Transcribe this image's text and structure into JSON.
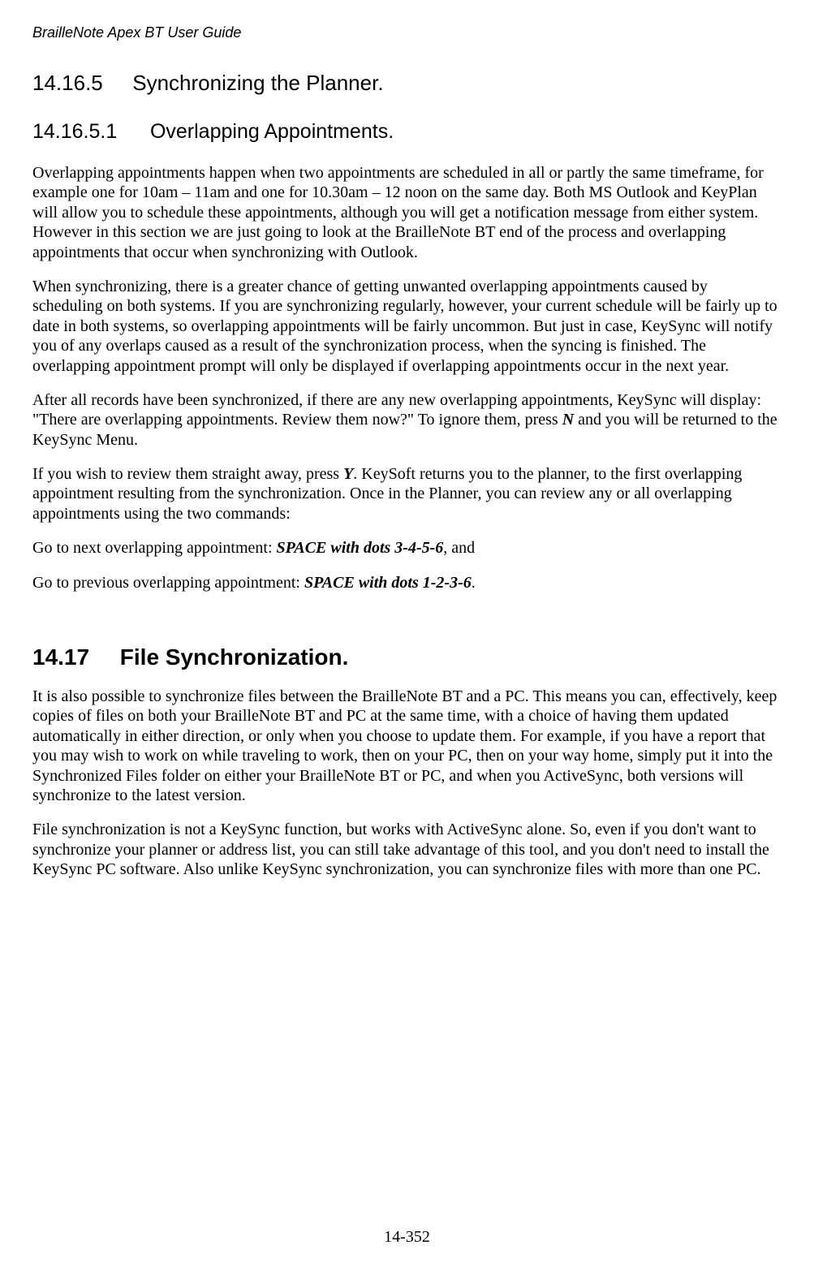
{
  "styles": {
    "font_body": "Times New Roman",
    "font_headings": "Arial",
    "body_fontsize_pt": 15,
    "h2_fontsize_pt": 21,
    "h3_fontsize_pt": 20,
    "h4_fontsize_pt": 19,
    "text_color": "#000000",
    "background_color": "#ffffff",
    "header_italic": true
  },
  "header": {
    "title": "BrailleNote Apex BT User Guide"
  },
  "section_14_16_5": {
    "number": "14.16.5",
    "title": "Synchronizing the Planner."
  },
  "section_14_16_5_1": {
    "number": "14.16.5.1",
    "title": "Overlapping Appointments.",
    "para1": "Overlapping appointments happen when two appointments are scheduled in all or partly the same timeframe, for example one for 10am – 11am and one for 10.30am – 12 noon on the same day. Both MS Outlook and KeyPlan will allow you to schedule these appointments, although you will get a notification message from either system. However in this section we are just going to look at the BrailleNote BT end of the process and overlapping appointments that occur when synchronizing with Outlook.",
    "para2": "When synchronizing, there is a greater chance of getting unwanted overlapping appointments caused by scheduling on both systems. If you are synchronizing regularly, however, your current schedule will be fairly up to date in both systems, so overlapping appointments will be fairly uncommon. But just in case, KeySync will notify you of any overlaps caused as a result of the synchronization process, when the syncing is finished. The overlapping appointment prompt will only be displayed if overlapping appointments occur in the next year.",
    "para3_a": "After all records have been synchronized, if there are any new overlapping appointments, KeySync will display: \"There are overlapping appointments. Review them now?\" To ignore them, press ",
    "para3_key": "N",
    "para3_b": " and you will be returned to the KeySync Menu.",
    "para4_a": "If you wish to review them straight away, press ",
    "para4_key": "Y",
    "para4_b": ". KeySoft returns you to the planner, to the first overlapping appointment resulting from the synchronization. Once in the Planner, you can review any or all overlapping appointments using the two commands:",
    "para5_a": "Go to next overlapping appointment: ",
    "para5_cmd": "SPACE with dots 3-4-5-6",
    "para5_b": ", and",
    "para6_a": "Go to previous overlapping appointment: ",
    "para6_cmd": "SPACE with dots 1-2-3-6",
    "para6_b": "."
  },
  "section_14_17": {
    "number": "14.17",
    "title": "File Synchronization.",
    "para1": "It is also possible to synchronize files between the BrailleNote BT and a PC. This means you can, effectively, keep copies of files on both your BrailleNote BT and PC at the same time, with a choice of having them updated automatically in either direction, or only when you choose to update them. For example, if you have a report that you may wish to work on while traveling to work, then on your PC, then on your way home, simply put it into the Synchronized Files folder on either your BrailleNote BT or PC, and when you ActiveSync, both versions will synchronize to the latest version.",
    "para2": "File synchronization is not a KeySync function, but works with ActiveSync alone. So, even if you don't want to synchronize your planner or address list, you can still take advantage of this tool, and you don't need to install the KeySync PC software. Also unlike KeySync synchronization, you can synchronize files with more than one PC."
  },
  "footer": {
    "page_number": "14-352"
  }
}
